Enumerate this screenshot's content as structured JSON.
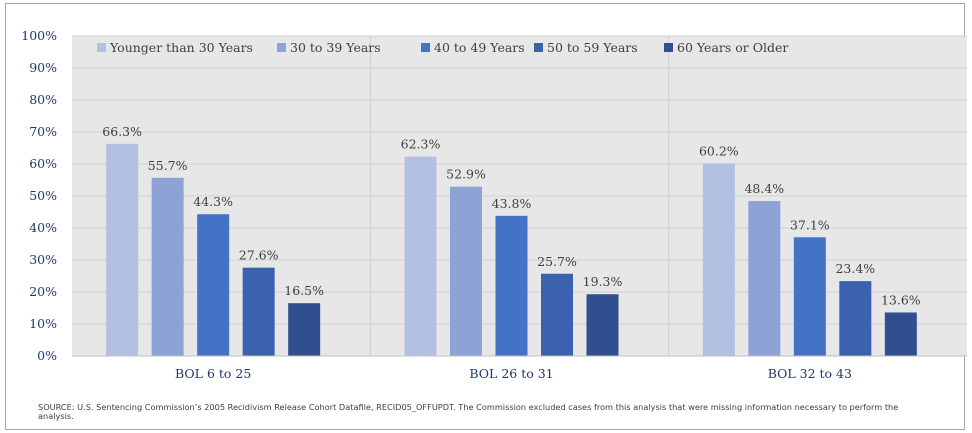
{
  "chart_data": {
    "type": "bar",
    "categories": [
      "BOL 6 to 25",
      "BOL 26 to 31",
      "BOL 32 to 43"
    ],
    "series": [
      {
        "name": "Younger than 30 Years",
        "color": "#b4c0e2",
        "values": [
          66.3,
          62.3,
          60.2
        ]
      },
      {
        "name": "30 to 39 Years",
        "color": "#8da3d6",
        "values": [
          55.7,
          52.9,
          48.4
        ]
      },
      {
        "name": "40 to 49 Years",
        "color": "#4472c4",
        "values": [
          44.3,
          43.8,
          37.1
        ]
      },
      {
        "name": "50 to 59 Years",
        "color": "#3a62ae",
        "values": [
          27.6,
          25.7,
          23.4
        ]
      },
      {
        "name": "60 Years or Older",
        "color": "#2f4f8f",
        "values": [
          16.5,
          19.3,
          13.6
        ]
      }
    ],
    "data_labels": [
      [
        "66.3%",
        "62.3%",
        "60.2%"
      ],
      [
        "55.7%",
        "52.9%",
        "48.4%"
      ],
      [
        "44.3%",
        "43.8%",
        "37.1%"
      ],
      [
        "27.6%",
        "25.7%",
        "23.4%"
      ],
      [
        "16.5%",
        "19.3%",
        "13.6%"
      ]
    ],
    "y_ticks": [
      "0%",
      "10%",
      "20%",
      "30%",
      "40%",
      "50%",
      "60%",
      "70%",
      "80%",
      "90%",
      "100%"
    ],
    "ylim": [
      0,
      100
    ],
    "grid": true,
    "legend_position": "top",
    "title": "",
    "xlabel": "",
    "ylabel": ""
  },
  "source_note": "SOURCE: U.S. Sentencing Commission’s 2005 Recidivism Release Cohort Datafile, RECID05_OFFUPDT. The Commission excluded cases from this analysis that were missing information necessary to perform the analysis."
}
